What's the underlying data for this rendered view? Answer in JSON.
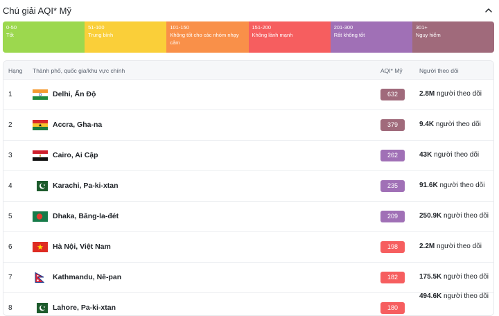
{
  "legend": {
    "title": "Chú giải AQI* Mỹ",
    "collapse_icon": "chevron-up-icon",
    "segments": [
      {
        "range": "0-50",
        "label": "Tốt",
        "color": "#9cd84e"
      },
      {
        "range": "51-100",
        "label": "Trung bình",
        "color": "#facf39"
      },
      {
        "range": "101-150",
        "label": "Không tốt cho các nhóm nhạy cảm",
        "color": "#f99049"
      },
      {
        "range": "151-200",
        "label": "Không lành mạnh",
        "color": "#f65e5f"
      },
      {
        "range": "201-300",
        "label": "Rất không tốt",
        "color": "#a070b6"
      },
      {
        "range": "301+",
        "label": "Nguy hiểm",
        "color": "#a06a7b"
      }
    ]
  },
  "table": {
    "headers": {
      "rank": "Hạng",
      "city": "Thành phố, quốc gia/khu vực chính",
      "aqi": "AQI* Mỹ",
      "followers": "Người theo dõi"
    },
    "rows": [
      {
        "rank": "1",
        "city": "Delhi, Ấn Độ",
        "flag": "india-flag-icon",
        "aqi": "632",
        "aqi_color": "#a06a7b",
        "followers_count": "2.8M",
        "followers_suffix": "người theo dõi"
      },
      {
        "rank": "2",
        "city": "Accra, Gha-na",
        "flag": "ghana-flag-icon",
        "aqi": "379",
        "aqi_color": "#a06a7b",
        "followers_count": "9.4K",
        "followers_suffix": "người theo dõi"
      },
      {
        "rank": "3",
        "city": "Cairo, Ai Cập",
        "flag": "egypt-flag-icon",
        "aqi": "262",
        "aqi_color": "#a070b6",
        "followers_count": "43K",
        "followers_suffix": "người theo dõi"
      },
      {
        "rank": "4",
        "city": "Karachi, Pa-ki-xtan",
        "flag": "pakistan-flag-icon",
        "aqi": "235",
        "aqi_color": "#a070b6",
        "followers_count": "91.6K",
        "followers_suffix": "người theo dõi"
      },
      {
        "rank": "5",
        "city": "Dhaka, Băng-la-đét",
        "flag": "bangladesh-flag-icon",
        "aqi": "209",
        "aqi_color": "#a070b6",
        "followers_count": "250.9K",
        "followers_suffix": "người theo dõi"
      },
      {
        "rank": "6",
        "city": "Hà Nội, Việt Nam",
        "flag": "vietnam-flag-icon",
        "aqi": "198",
        "aqi_color": "#f65e5f",
        "followers_count": "2.2M",
        "followers_suffix": "người theo dõi"
      },
      {
        "rank": "7",
        "city": "Kathmandu, Nê-pan",
        "flag": "nepal-flag-icon",
        "aqi": "182",
        "aqi_color": "#f65e5f",
        "followers_count": "175.5K",
        "followers_suffix": "người theo dõi"
      },
      {
        "rank": "8",
        "city": "Lahore, Pa-ki-xtan",
        "flag": "pakistan-flag-icon",
        "aqi": "180",
        "aqi_color": "#f65e5f",
        "followers_count": "494.6K",
        "followers_suffix": "người theo dõi"
      }
    ]
  }
}
